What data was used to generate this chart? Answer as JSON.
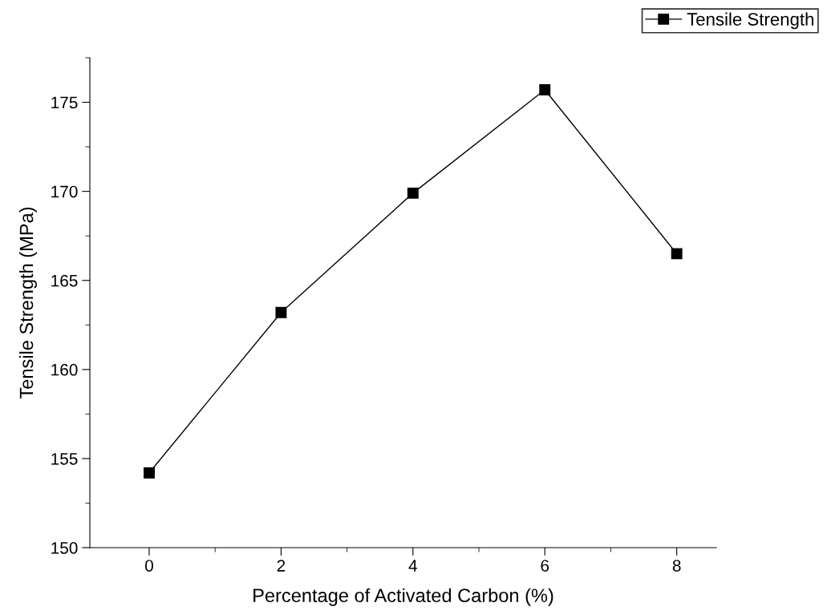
{
  "chart_data": {
    "type": "line",
    "xlabel": "Percentage of Activated Carbon (%)",
    "ylabel": "Tensile Strength (MPa)",
    "x": [
      0,
      2,
      4,
      6,
      8
    ],
    "series": [
      {
        "name": "Tensile Strength",
        "color": "#000000",
        "values": [
          154.2,
          163.2,
          169.9,
          175.7,
          166.5
        ]
      }
    ],
    "xlim": [
      -0.9,
      8.6
    ],
    "xticks": [
      0,
      2,
      4,
      6,
      8
    ],
    "ylim": [
      150,
      177.5
    ],
    "yticks": [
      150,
      155,
      160,
      165,
      170,
      175
    ],
    "grid": false,
    "legend": "top right",
    "marker": "square",
    "line_style": "solid"
  }
}
